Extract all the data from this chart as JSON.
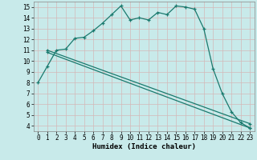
{
  "xlabel": "Humidex (Indice chaleur)",
  "bg_color": "#c8eaea",
  "grid_color": "#d4b8b8",
  "line_color": "#1a7a6e",
  "xlim": [
    -0.5,
    23.5
  ],
  "ylim": [
    3.5,
    15.5
  ],
  "xticks": [
    0,
    1,
    2,
    3,
    4,
    5,
    6,
    7,
    8,
    9,
    10,
    11,
    12,
    13,
    14,
    15,
    16,
    17,
    18,
    19,
    20,
    21,
    22,
    23
  ],
  "yticks": [
    4,
    5,
    6,
    7,
    8,
    9,
    10,
    11,
    12,
    13,
    14,
    15
  ],
  "curve1_x": [
    0,
    1,
    2,
    3,
    4,
    5,
    6,
    7,
    8,
    9,
    10,
    11,
    12,
    13,
    14,
    15,
    16,
    17,
    18,
    19,
    20,
    21,
    22,
    23
  ],
  "curve1_y": [
    8.0,
    9.5,
    11.0,
    11.1,
    12.1,
    12.2,
    12.8,
    13.5,
    14.3,
    15.1,
    13.8,
    14.0,
    13.8,
    14.5,
    14.3,
    15.1,
    15.0,
    14.8,
    13.0,
    9.3,
    7.0,
    5.3,
    4.3,
    3.8
  ],
  "curve2_x": [
    1,
    23
  ],
  "curve2_y": [
    11.0,
    4.2
  ],
  "curve3_x": [
    1,
    23
  ],
  "curve3_y": [
    10.8,
    3.8
  ],
  "xlabel_fontsize": 6.5,
  "tick_fontsize": 5.5
}
